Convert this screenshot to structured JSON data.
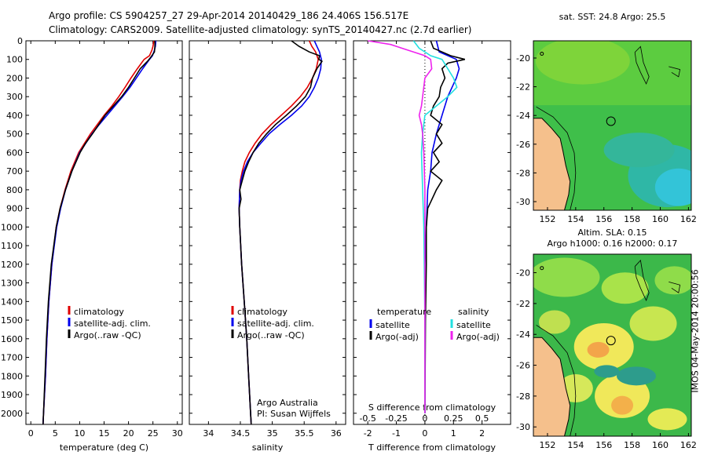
{
  "header": {
    "line1": "Argo profile: CS 5904257_27 29-Apr-2014 20140429_186 24.406S 156.517E",
    "line2": "Climatology: CARS2009. Satellite-adjusted climatology: synTS_20140427.nc (2.7d earlier)"
  },
  "credit": "IMOS 04-May-2014 20:00:56",
  "colors": {
    "climatology": "#e00000",
    "satellite": "#0000ee",
    "argo": "#000000",
    "sat_salt": "#22e0e0",
    "argo_salt_diff": "#ee22ee",
    "land": "#f5c08c"
  },
  "chart_data": [
    {
      "type": "line",
      "id": "temperature",
      "xlabel": "temperature (deg C)",
      "xlim": [
        -1,
        31
      ],
      "ylim": [
        2060,
        0
      ],
      "xticks": [
        "0",
        "5",
        "10",
        "15",
        "20",
        "25",
        "30"
      ],
      "yticks": [
        "0",
        "100",
        "200",
        "300",
        "400",
        "500",
        "600",
        "700",
        "800",
        "900",
        "1000",
        "1100",
        "1200",
        "1300",
        "1400",
        "1500",
        "1600",
        "1700",
        "1800",
        "1900",
        "2000"
      ],
      "legend": [
        "climatology",
        "satellite-adj. clim.",
        "Argo(..raw -QC)"
      ],
      "series": [
        {
          "name": "climatology",
          "depth": [
            0,
            30,
            50,
            80,
            100,
            150,
            200,
            250,
            300,
            350,
            400,
            450,
            500,
            600,
            700,
            800,
            900,
            1000,
            1200,
            1400,
            1600,
            1800,
            2000,
            2060
          ],
          "values": [
            25.2,
            25.0,
            24.8,
            24.3,
            23.2,
            21.8,
            20.5,
            19.3,
            18.0,
            16.6,
            15.0,
            13.6,
            12.2,
            9.8,
            8.2,
            7.0,
            6.0,
            5.2,
            4.3,
            3.7,
            3.3,
            3.0,
            2.6,
            2.5
          ]
        },
        {
          "name": "satellite-adj. clim.",
          "depth": [
            0,
            30,
            50,
            80,
            100,
            150,
            200,
            250,
            300,
            350,
            400,
            450,
            500,
            600,
            700,
            800,
            900,
            1000,
            1200,
            1400,
            1600,
            1800,
            2000,
            2060
          ],
          "values": [
            25.6,
            25.5,
            25.3,
            24.9,
            24.3,
            22.9,
            21.6,
            20.3,
            18.8,
            17.2,
            15.6,
            14.0,
            12.5,
            10.0,
            8.4,
            7.1,
            6.1,
            5.3,
            4.3,
            3.7,
            3.3,
            3.0,
            2.6,
            2.5
          ]
        },
        {
          "name": "Argo(..raw -QC)",
          "depth": [
            0,
            30,
            60,
            90,
            110,
            150,
            200,
            250,
            300,
            350,
            400,
            450,
            500,
            550,
            600,
            700,
            800,
            900,
            1000,
            1200,
            1400,
            1600,
            1800,
            2000,
            2060
          ],
          "values": [
            25.4,
            25.4,
            25.3,
            24.5,
            23.9,
            22.4,
            21.2,
            20.0,
            18.6,
            16.9,
            15.2,
            13.9,
            12.6,
            11.2,
            10.1,
            8.4,
            7.1,
            6.0,
            5.2,
            4.2,
            3.6,
            3.2,
            2.9,
            2.6,
            2.5
          ]
        }
      ]
    },
    {
      "type": "line",
      "id": "salinity",
      "xlabel": "salinity",
      "xlim": [
        33.7,
        36.15
      ],
      "ylim": [
        2060,
        0
      ],
      "xticks": [
        "34",
        "34.5",
        "35",
        "35.5",
        "36"
      ],
      "legend": [
        "climatology",
        "satellite-adj. clim.",
        "Argo(..raw -QC)"
      ],
      "annotation": [
        "Argo Australia",
        "PI: Susan Wijffels"
      ],
      "series": [
        {
          "name": "climatology",
          "depth": [
            0,
            30,
            60,
            100,
            150,
            200,
            250,
            300,
            350,
            400,
            450,
            500,
            550,
            600,
            650,
            700,
            750,
            800,
            900,
            1000,
            1200,
            1400,
            1600,
            1800,
            2000,
            2060
          ],
          "values": [
            35.58,
            35.62,
            35.68,
            35.72,
            35.69,
            35.63,
            35.55,
            35.44,
            35.3,
            35.14,
            34.98,
            34.84,
            34.73,
            34.64,
            34.57,
            34.53,
            34.5,
            34.49,
            34.48,
            34.49,
            34.52,
            34.56,
            34.6,
            34.63,
            34.66,
            34.67
          ]
        },
        {
          "name": "satellite-adj. clim.",
          "depth": [
            0,
            30,
            60,
            100,
            150,
            200,
            250,
            300,
            350,
            400,
            450,
            500,
            550,
            600,
            650,
            700,
            750,
            800,
            900,
            1000,
            1200,
            1400,
            1600,
            1800,
            2000,
            2060
          ],
          "values": [
            35.66,
            35.7,
            35.74,
            35.77,
            35.76,
            35.72,
            35.66,
            35.58,
            35.46,
            35.3,
            35.12,
            34.95,
            34.82,
            34.7,
            34.61,
            34.55,
            34.51,
            34.49,
            34.48,
            34.49,
            34.52,
            34.56,
            34.6,
            34.63,
            34.66,
            34.67
          ]
        },
        {
          "name": "Argo(..raw -QC)",
          "depth": [
            0,
            30,
            60,
            80,
            100,
            110,
            150,
            200,
            250,
            300,
            350,
            400,
            450,
            500,
            550,
            600,
            650,
            700,
            750,
            800,
            850,
            900,
            1000,
            1200,
            1400,
            1600,
            1800,
            2000,
            2060
          ],
          "values": [
            35.3,
            35.42,
            35.58,
            35.74,
            35.73,
            35.78,
            35.7,
            35.63,
            35.6,
            35.52,
            35.38,
            35.22,
            35.05,
            34.91,
            34.79,
            34.7,
            34.63,
            34.57,
            34.53,
            34.49,
            34.51,
            34.48,
            34.49,
            34.52,
            34.56,
            34.6,
            34.63,
            34.66,
            34.67
          ]
        }
      ]
    },
    {
      "type": "line",
      "id": "difference",
      "xlabel": "T difference from climatology",
      "xlabel_top": "S difference from climatology",
      "xlim": [
        -2.5,
        3
      ],
      "ylim": [
        2060,
        0
      ],
      "xticks_T": [
        "-2",
        "-1",
        "0",
        "1",
        "2"
      ],
      "xticks_S": [
        "-0.5",
        "-0.25",
        "0",
        "0.25",
        "0.5"
      ],
      "legend_titles": [
        "temperature",
        "salinity"
      ],
      "legend": [
        "satellite",
        "Argo(-adj)",
        "satellite",
        "Argo(-adj)"
      ],
      "series": [
        {
          "name": "satellite T",
          "depth": [
            0,
            60,
            100,
            150,
            200,
            300,
            400,
            500,
            600,
            700,
            800,
            1000,
            1200,
            1500,
            2000
          ],
          "values": [
            0.4,
            0.5,
            1.1,
            1.2,
            1.1,
            0.8,
            0.6,
            0.4,
            0.25,
            0.2,
            0.1,
            0.05,
            0.0,
            0.0,
            0.0
          ]
        },
        {
          "name": "Argo(-adj) T",
          "depth": [
            0,
            40,
            60,
            80,
            100,
            120,
            150,
            200,
            250,
            300,
            350,
            400,
            450,
            500,
            550,
            600,
            650,
            700,
            750,
            800,
            900,
            1000,
            1200,
            1500,
            2000
          ],
          "values": [
            0.2,
            0.3,
            0.6,
            0.9,
            1.4,
            0.8,
            0.6,
            0.7,
            0.55,
            0.5,
            0.3,
            0.2,
            0.6,
            0.4,
            0.6,
            0.3,
            0.5,
            0.2,
            0.6,
            0.4,
            0.1,
            0.05,
            0.05,
            0.02,
            0.0
          ]
        },
        {
          "name": "satellite S",
          "depth": [
            0,
            40,
            60,
            80,
            100,
            150,
            200,
            250,
            300,
            400,
            500,
            600,
            800,
            1000,
            1500,
            2000
          ],
          "values": [
            -0.1,
            -0.05,
            0.0,
            0.05,
            0.15,
            0.2,
            0.25,
            0.28,
            0.2,
            0.0,
            -0.02,
            -0.03,
            -0.02,
            -0.01,
            0.0,
            0.0
          ]
        },
        {
          "name": "Argo(-adj) S",
          "depth": [
            0,
            20,
            40,
            60,
            80,
            100,
            150,
            200,
            300,
            350,
            400,
            450,
            500,
            600,
            800,
            1000,
            1500,
            2000
          ],
          "values": [
            -0.5,
            -0.3,
            -0.2,
            -0.1,
            0.0,
            0.05,
            0.06,
            0.0,
            -0.02,
            -0.03,
            -0.05,
            -0.03,
            -0.02,
            -0.01,
            0.0,
            0.0,
            0.0,
            0.0
          ]
        }
      ]
    },
    {
      "type": "heatmap",
      "id": "sst-map",
      "title": "sat. SST: 24.8  Argo: 25.5",
      "xticks": [
        "152",
        "154",
        "156",
        "158",
        "160",
        "162"
      ],
      "yticks": [
        "-20",
        "-22",
        "-24",
        "-26",
        "-28",
        "-30"
      ],
      "profile_marker": {
        "lon": 156.5,
        "lat": -24.4
      }
    },
    {
      "type": "heatmap",
      "id": "sla-map",
      "title": "Altim. SLA: 0.15",
      "subtitle": "Argo h1000: 0.16  h2000: 0.17",
      "xticks": [
        "152",
        "154",
        "156",
        "158",
        "160",
        "162"
      ],
      "yticks": [
        "-20",
        "-22",
        "-24",
        "-26",
        "-28",
        "-30"
      ],
      "profile_marker": {
        "lon": 156.5,
        "lat": -24.4
      }
    }
  ]
}
